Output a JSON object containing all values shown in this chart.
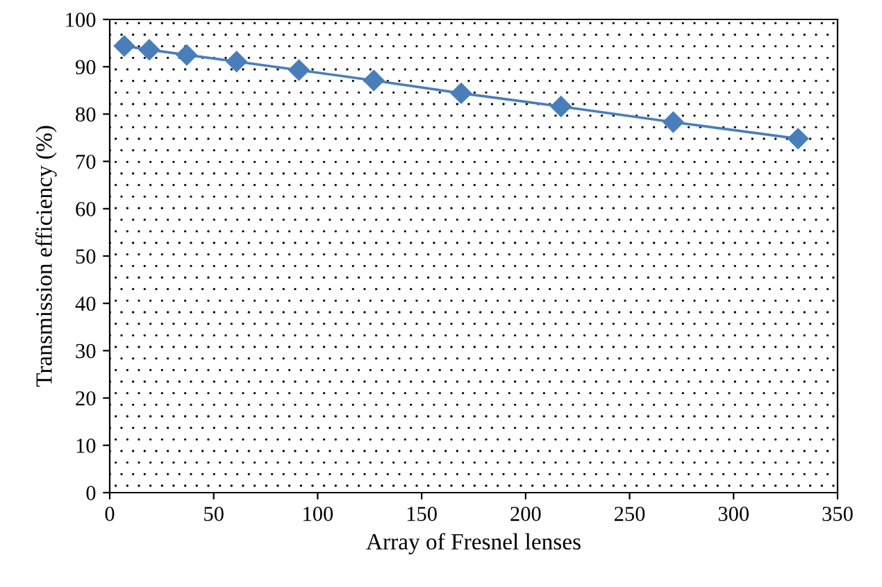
{
  "chart_data": {
    "type": "line",
    "xlabel": "Array of Fresnel lenses",
    "ylabel": "Transmission efficiency (%)",
    "x": [
      7,
      19,
      37,
      61,
      91,
      127,
      169,
      217,
      271,
      331
    ],
    "series": [
      {
        "color": "#4a7ebb",
        "values": [
          94.4,
          93.6,
          92.5,
          91.1,
          89.3,
          87.1,
          84.4,
          81.6,
          78.3,
          74.8
        ]
      }
    ],
    "xlim": [
      0,
      350
    ],
    "xticks": [
      0,
      50,
      100,
      150,
      200,
      250,
      300,
      350
    ],
    "ylim": [
      0,
      100
    ],
    "yticks": [
      0,
      10,
      20,
      30,
      40,
      50,
      60,
      70,
      80,
      90,
      100
    ],
    "grid": false,
    "legend": false,
    "marker": "diamond",
    "line_style": "solid"
  }
}
